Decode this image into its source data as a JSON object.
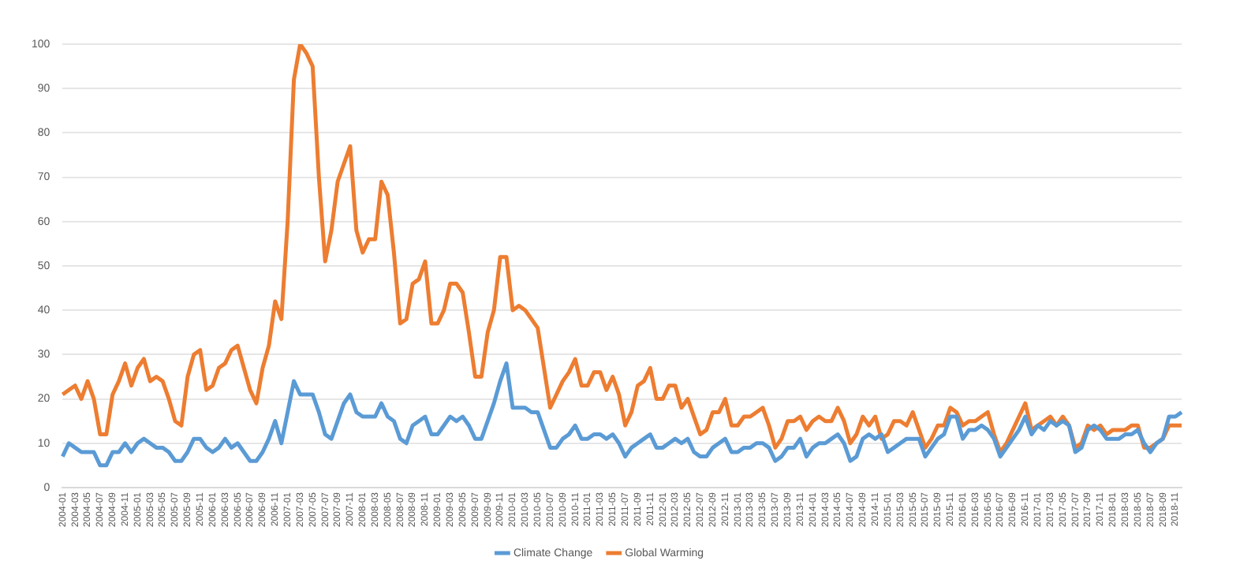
{
  "chart_data": {
    "type": "line",
    "categories": [
      "2004-01",
      null,
      "2004-03",
      null,
      "2004-05",
      null,
      "2004-07",
      null,
      "2004-09",
      null,
      "2004-11",
      null,
      "2005-01",
      null,
      "2005-03",
      null,
      "2005-05",
      null,
      "2005-07",
      null,
      "2005-09",
      null,
      "2005-11",
      null,
      "2006-01",
      null,
      "2006-03",
      null,
      "2006-05",
      null,
      "2006-07",
      null,
      "2006-09",
      null,
      "2006-11",
      null,
      "2007-01",
      null,
      "2007-03",
      null,
      "2007-05",
      null,
      "2007-07",
      null,
      "2007-09",
      null,
      "2007-11",
      null,
      "2008-01",
      null,
      "2008-03",
      null,
      "2008-05",
      null,
      "2008-07",
      null,
      "2008-09",
      null,
      "2008-11",
      null,
      "2009-01",
      null,
      "2009-03",
      null,
      "2009-05",
      null,
      "2009-07",
      null,
      "2009-09",
      null,
      "2009-11",
      null,
      "2010-01",
      null,
      "2010-03",
      null,
      "2010-05",
      null,
      "2010-07",
      null,
      "2010-09",
      null,
      "2010-11",
      null,
      "2011-01",
      null,
      "2011-03",
      null,
      "2011-05",
      null,
      "2011-07",
      null,
      "2011-09",
      null,
      "2011-11",
      null,
      "2012-01",
      null,
      "2012-03",
      null,
      "2012-05",
      null,
      "2012-07",
      null,
      "2012-09",
      null,
      "2012-11",
      null,
      "2013-01",
      null,
      "2013-03",
      null,
      "2013-05",
      null,
      "2013-07",
      null,
      "2013-09",
      null,
      "2013-11",
      null,
      "2014-01",
      null,
      "2014-03",
      null,
      "2014-05",
      null,
      "2014-07",
      null,
      "2014-09",
      null,
      "2014-11",
      null,
      "2015-01",
      null,
      "2015-03",
      null,
      "2015-05",
      null,
      "2015-07",
      null,
      "2015-09",
      null,
      "2015-11",
      null,
      "2016-01",
      null,
      "2016-03",
      null,
      "2016-05",
      null,
      "2016-07",
      null,
      "2016-09",
      null,
      "2016-11",
      null,
      "2017-01",
      null,
      "2017-03",
      null,
      "2017-05",
      null,
      "2017-07",
      null,
      "2017-09",
      null,
      "2017-11",
      null,
      "2018-01",
      null,
      "2018-03",
      null,
      "2018-05",
      null,
      "2018-07",
      null,
      "2018-09",
      null,
      "2018-11",
      null
    ],
    "series": [
      {
        "name": "Climate Change",
        "color": "#5b9bd5",
        "values": [
          7,
          10,
          9,
          8,
          8,
          8,
          5,
          5,
          8,
          8,
          10,
          8,
          10,
          11,
          10,
          9,
          9,
          8,
          6,
          6,
          8,
          11,
          11,
          9,
          8,
          9,
          11,
          9,
          10,
          8,
          6,
          6,
          8,
          11,
          15,
          10,
          17,
          24,
          21,
          21,
          21,
          17,
          12,
          11,
          15,
          19,
          21,
          17,
          16,
          16,
          16,
          19,
          16,
          15,
          11,
          10,
          14,
          15,
          16,
          12,
          12,
          14,
          16,
          15,
          16,
          14,
          11,
          11,
          15,
          19,
          24,
          28,
          18,
          18,
          18,
          17,
          17,
          13,
          9,
          9,
          11,
          12,
          14,
          11,
          11,
          12,
          12,
          11,
          12,
          10,
          7,
          9,
          10,
          11,
          12,
          9,
          9,
          10,
          11,
          10,
          11,
          8,
          7,
          7,
          9,
          10,
          11,
          8,
          8,
          9,
          9,
          10,
          10,
          9,
          6,
          7,
          9,
          9,
          11,
          7,
          9,
          10,
          10,
          11,
          12,
          10,
          6,
          7,
          11,
          12,
          11,
          12,
          8,
          9,
          10,
          11,
          11,
          11,
          7,
          9,
          11,
          12,
          16,
          16,
          11,
          13,
          13,
          14,
          13,
          11,
          7,
          9,
          11,
          13,
          16,
          12,
          14,
          13,
          15,
          14,
          15,
          14,
          8,
          9,
          13,
          14,
          13,
          11,
          11,
          11,
          12,
          12,
          13,
          10,
          8,
          10,
          11,
          16,
          16,
          17
        ]
      },
      {
        "name": "Global Warming",
        "color": "#ed7d31",
        "values": [
          21,
          22,
          23,
          20,
          24,
          20,
          12,
          12,
          21,
          24,
          28,
          23,
          27,
          29,
          24,
          25,
          24,
          20,
          15,
          14,
          25,
          30,
          31,
          22,
          23,
          27,
          28,
          31,
          32,
          27,
          22,
          19,
          27,
          32,
          42,
          38,
          60,
          92,
          100,
          98,
          95,
          70,
          51,
          58,
          69,
          73,
          77,
          58,
          53,
          56,
          56,
          69,
          66,
          53,
          37,
          38,
          46,
          47,
          51,
          37,
          37,
          40,
          46,
          46,
          44,
          35,
          25,
          25,
          35,
          40,
          52,
          52,
          40,
          41,
          40,
          38,
          36,
          27,
          18,
          21,
          24,
          26,
          29,
          23,
          23,
          26,
          26,
          22,
          25,
          21,
          14,
          17,
          23,
          24,
          27,
          20,
          20,
          23,
          23,
          18,
          20,
          16,
          12,
          13,
          17,
          17,
          20,
          14,
          14,
          16,
          16,
          17,
          18,
          14,
          9,
          11,
          15,
          15,
          16,
          13,
          15,
          16,
          15,
          15,
          18,
          15,
          10,
          12,
          16,
          14,
          16,
          11,
          12,
          15,
          15,
          14,
          17,
          13,
          9,
          11,
          14,
          14,
          18,
          17,
          14,
          15,
          15,
          16,
          17,
          12,
          8,
          10,
          13,
          16,
          19,
          13,
          14,
          15,
          16,
          14,
          16,
          14,
          9,
          10,
          14,
          13,
          14,
          12,
          13,
          13,
          13,
          14,
          14,
          9,
          9,
          10,
          11,
          14,
          14,
          14
        ]
      }
    ],
    "ylim": [
      0,
      100
    ],
    "yticks": [
      0,
      10,
      20,
      30,
      40,
      50,
      60,
      70,
      80,
      90,
      100
    ],
    "grid": "y",
    "legend": "bottom",
    "marker": "none",
    "line_style": "solid"
  }
}
